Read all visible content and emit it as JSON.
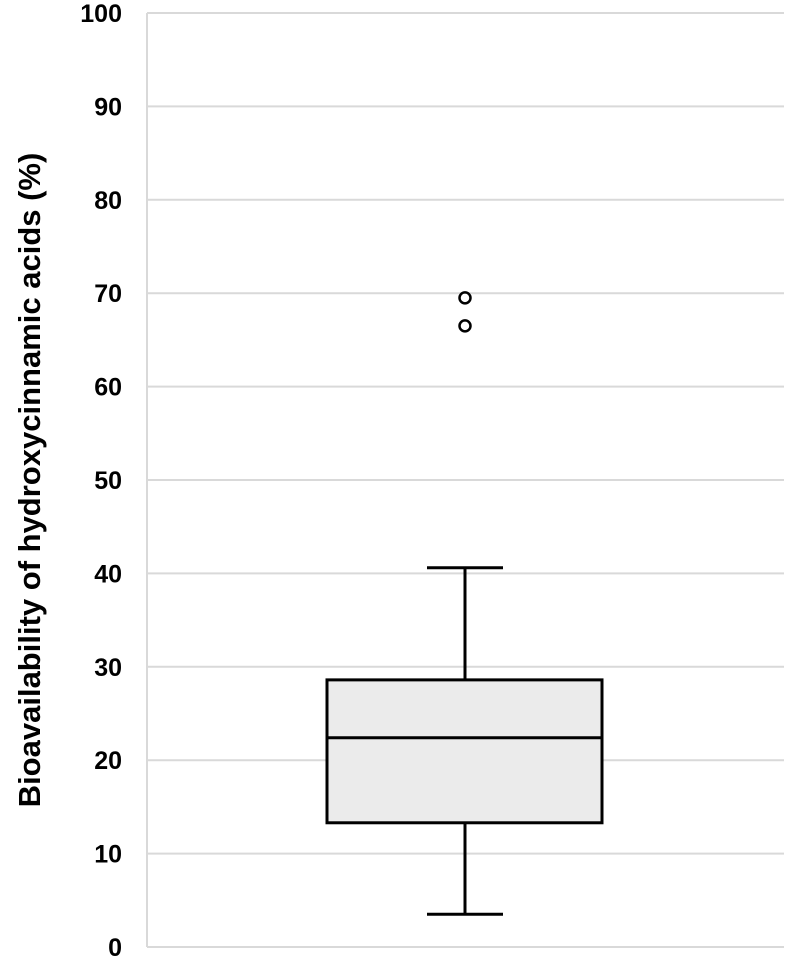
{
  "chart_data": {
    "type": "box",
    "ylabel": "Bioavailability of hydroxycinnamic acids (%)",
    "xlabel": "",
    "ylim": [
      0,
      100
    ],
    "yticks": [
      0,
      10,
      20,
      30,
      40,
      50,
      60,
      70,
      80,
      90,
      100
    ],
    "grid": true,
    "legend": "none",
    "box": {
      "whisker_low": 3.5,
      "q1": 13.3,
      "median": 22.4,
      "q3": 28.6,
      "whisker_high": 40.6,
      "outliers": [
        66.5,
        69.5
      ]
    },
    "colors": {
      "box_fill": "#ebebeb",
      "stroke": "#000000",
      "grid": "#d9d9d9",
      "axis": "#d9d9d9"
    }
  }
}
